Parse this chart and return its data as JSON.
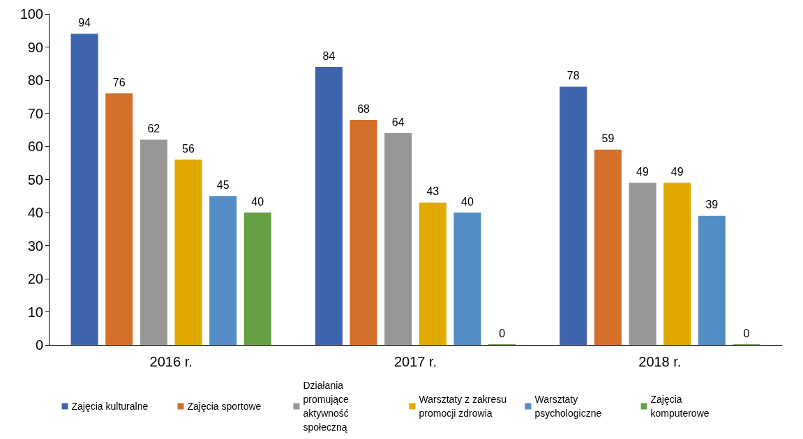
{
  "chart_data": {
    "type": "bar",
    "categories": [
      "2016 r.",
      "2017 r.",
      "2018 r."
    ],
    "series": [
      {
        "name": "Zajęcia kulturalne",
        "color": "#3f64ae",
        "values": [
          94,
          84,
          78
        ]
      },
      {
        "name": "Zajęcia sportowe",
        "color": "#d4702c",
        "values": [
          76,
          68,
          59
        ]
      },
      {
        "name": "Działania promujące aktywność społeczną",
        "color": "#979797",
        "values": [
          62,
          64,
          49
        ]
      },
      {
        "name": "Warsztaty z zakresu promocji zdrowia",
        "color": "#e2a900",
        "values": [
          56,
          43,
          49
        ]
      },
      {
        "name": "Warsztaty psychologiczne",
        "color": "#548dc6",
        "values": [
          45,
          40,
          39
        ]
      },
      {
        "name": "Zajęcia komputerowe",
        "color": "#65a043",
        "values": [
          40,
          0,
          0
        ]
      }
    ],
    "ylim": [
      0,
      100
    ],
    "yticks": [
      0,
      10,
      20,
      30,
      40,
      50,
      60,
      70,
      80,
      90,
      100
    ],
    "grid": false,
    "legend": "bottom",
    "data_labels": true
  }
}
